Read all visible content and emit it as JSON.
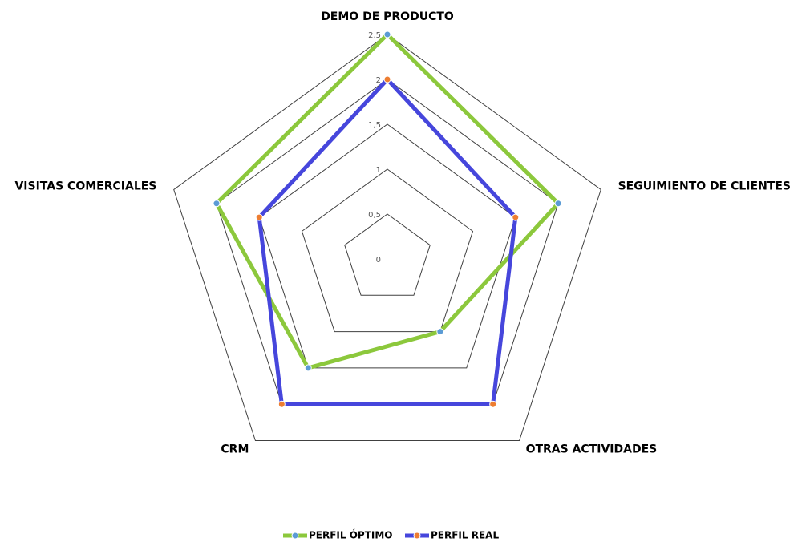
{
  "chart_data": {
    "type": "radar",
    "categories": [
      "DEMO DE PRODUCTO",
      "SEGUIMIENTO DE CLIENTES",
      "OTRAS ACTIVIDADES",
      "CRM",
      "VISITAS COMERCIALES"
    ],
    "series": [
      {
        "name": "PERFIL ÓPTIMO",
        "color": "#8cc83c",
        "marker_color": "#5b9bd5",
        "values": [
          2.5,
          2,
          1,
          1.5,
          2
        ]
      },
      {
        "name": "PERFIL REAL",
        "color": "#4646dc",
        "marker_color": "#ed7d31",
        "values": [
          2,
          1.5,
          2,
          2,
          1.5
        ]
      }
    ],
    "ylim": [
      0,
      2.5
    ],
    "yticks": [
      0,
      {
        "value": 0.5,
        "label": "0,5"
      },
      1,
      {
        "value": 1.5,
        "label": "1,5"
      },
      2,
      {
        "value": 2.5,
        "label": "2,5"
      }
    ],
    "grid": true,
    "legend": "bottom"
  }
}
